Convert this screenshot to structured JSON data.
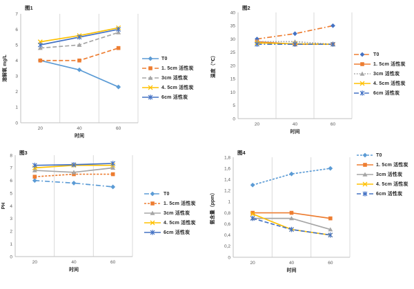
{
  "page": {
    "background": "#ffffff"
  },
  "colors": {
    "light_blue": "#5B9BD5",
    "orange": "#ED7D31",
    "gray": "#A5A5A5",
    "yellow": "#FFC000",
    "dark_blue": "#4472C4",
    "gridline": "#D9D9D9",
    "axis_line": "#BFBFBF",
    "tick_text": "#595959"
  },
  "chart_data": [
    {
      "type": "line",
      "title": "图1",
      "xlabel": "时间",
      "ylabel": "溶解氧 mg/L",
      "x": [
        20,
        40,
        60
      ],
      "xtick_labels": [
        "20",
        "40",
        "60"
      ],
      "xlim": [
        10,
        70
      ],
      "grid_x": [
        30,
        50,
        70
      ],
      "ylim": [
        0,
        7
      ],
      "ystep": 1,
      "ytick_labels": [
        "0",
        "1",
        "2",
        "3",
        "4",
        "5",
        "6",
        "7"
      ],
      "legend_position": "right",
      "series": [
        {
          "name": "T0",
          "values": [
            4,
            3.4,
            2.3
          ],
          "color": "#5B9BD5",
          "line": "solid",
          "marker": "diamond"
        },
        {
          "name": "1. 5cm 活性炭",
          "values": [
            4,
            4,
            4.8
          ],
          "color": "#ED7D31",
          "line": "dash",
          "marker": "square"
        },
        {
          "name": "3cm 活性炭",
          "values": [
            4.8,
            5,
            5.8
          ],
          "color": "#A5A5A5",
          "line": "dash",
          "marker": "triangle"
        },
        {
          "name": "4. 5cm 活性炭",
          "values": [
            5.2,
            5.6,
            6.1
          ],
          "color": "#FFC000",
          "line": "solid",
          "marker": "x"
        },
        {
          "name": "6cm 活性炭",
          "values": [
            5,
            5.5,
            6
          ],
          "color": "#4472C4",
          "line": "solid",
          "marker": "star"
        }
      ]
    },
    {
      "type": "line",
      "title": "图2",
      "xlabel": "时间",
      "ylabel": "温度（℃）",
      "x": [
        20,
        40,
        60
      ],
      "xtick_labels": [
        "20",
        "40",
        "60"
      ],
      "xlim": [
        10,
        70
      ],
      "grid_x": [
        30,
        50,
        70
      ],
      "ylim": [
        0,
        40
      ],
      "ystep": 5,
      "ytick_labels": [
        "0",
        "5",
        "10",
        "15",
        "20",
        "25",
        "30",
        "35",
        "40"
      ],
      "legend_position": "right",
      "series": [
        {
          "name": "T0",
          "values": [
            30,
            32,
            35
          ],
          "color": "#ED7D31",
          "line": "dashdot",
          "marker": "diamond",
          "marker_color": "#4472C4"
        },
        {
          "name": "1. 5cm 活性炭",
          "values": [
            29,
            28,
            28
          ],
          "color": "#ED7D31",
          "line": "solid",
          "marker": "square"
        },
        {
          "name": "3cm 活性炭",
          "values": [
            29,
            29,
            28
          ],
          "color": "#A5A5A5",
          "line": "dot",
          "marker": "triangle"
        },
        {
          "name": "4. 5cm 活性炭",
          "values": [
            28.5,
            28.2,
            28
          ],
          "color": "#FFC000",
          "line": "solid",
          "marker": "x"
        },
        {
          "name": "6cm 活性炭",
          "values": [
            28,
            28,
            28
          ],
          "color": "#4472C4",
          "line": "dashdot",
          "marker": "star"
        }
      ]
    },
    {
      "type": "line",
      "title": "图3",
      "xlabel": "时间",
      "ylabel": "PH",
      "x": [
        20,
        40,
        60
      ],
      "xtick_labels": [
        "20",
        "40",
        "60"
      ],
      "xlim": [
        10,
        70
      ],
      "grid_x": [
        30,
        50,
        70
      ],
      "ylim": [
        0,
        8
      ],
      "ystep": 1,
      "ytick_labels": [
        "0",
        "1",
        "2",
        "3",
        "4",
        "5",
        "6",
        "7",
        "8"
      ],
      "legend_position": "right",
      "series": [
        {
          "name": "T0",
          "values": [
            6,
            5.8,
            5.5
          ],
          "color": "#5B9BD5",
          "line": "dashdot",
          "marker": "diamond"
        },
        {
          "name": "1. 5cm 活性炭",
          "values": [
            6.3,
            6.5,
            6.5
          ],
          "color": "#ED7D31",
          "line": "shortdash",
          "marker": "square"
        },
        {
          "name": "3cm 活性炭",
          "values": [
            6.8,
            6.65,
            7
          ],
          "color": "#A5A5A5",
          "line": "solid",
          "marker": "triangle"
        },
        {
          "name": "4. 5cm 活性炭",
          "values": [
            7,
            7.2,
            7.2
          ],
          "color": "#FFC000",
          "line": "solid",
          "marker": "x"
        },
        {
          "name": "6cm 活性炭",
          "values": [
            7.2,
            7.25,
            7.35
          ],
          "color": "#4472C4",
          "line": "solid",
          "marker": "star"
        }
      ]
    },
    {
      "type": "line",
      "title": "图4",
      "xlabel": "时间",
      "ylabel": "氨含量（ppm）",
      "x": [
        20,
        40,
        60
      ],
      "xtick_labels": [
        "20",
        "40",
        "60"
      ],
      "xlim": [
        10,
        70
      ],
      "grid_x": [
        30,
        50,
        70
      ],
      "ylim": [
        0,
        1.8
      ],
      "ystep": 0.2,
      "ytick_labels": [
        "0",
        "0,2",
        "0,4",
        "0,6",
        "0,8",
        "1",
        "1,2",
        "1,4",
        "1,6",
        "1,8"
      ],
      "legend_position": "right",
      "series": [
        {
          "name": "T0",
          "values": [
            1.3,
            1.5,
            1.6
          ],
          "color": "#5B9BD5",
          "line": "shortdash",
          "marker": "diamond"
        },
        {
          "name": "1. 5cm 活性炭",
          "values": [
            0.8,
            0.8,
            0.7
          ],
          "color": "#ED7D31",
          "line": "solid",
          "marker": "square"
        },
        {
          "name": "3cm 活性炭",
          "values": [
            0.7,
            0.7,
            0.5
          ],
          "color": "#A5A5A5",
          "line": "solid",
          "marker": "triangle"
        },
        {
          "name": "4. 5cm 活性炭",
          "values": [
            0.78,
            0.5,
            0.4
          ],
          "color": "#FFC000",
          "line": "solid",
          "marker": "x"
        },
        {
          "name": "6cm 活性炭",
          "values": [
            0.7,
            0.5,
            0.4
          ],
          "color": "#4472C4",
          "line": "dash",
          "marker": "star"
        }
      ]
    }
  ]
}
